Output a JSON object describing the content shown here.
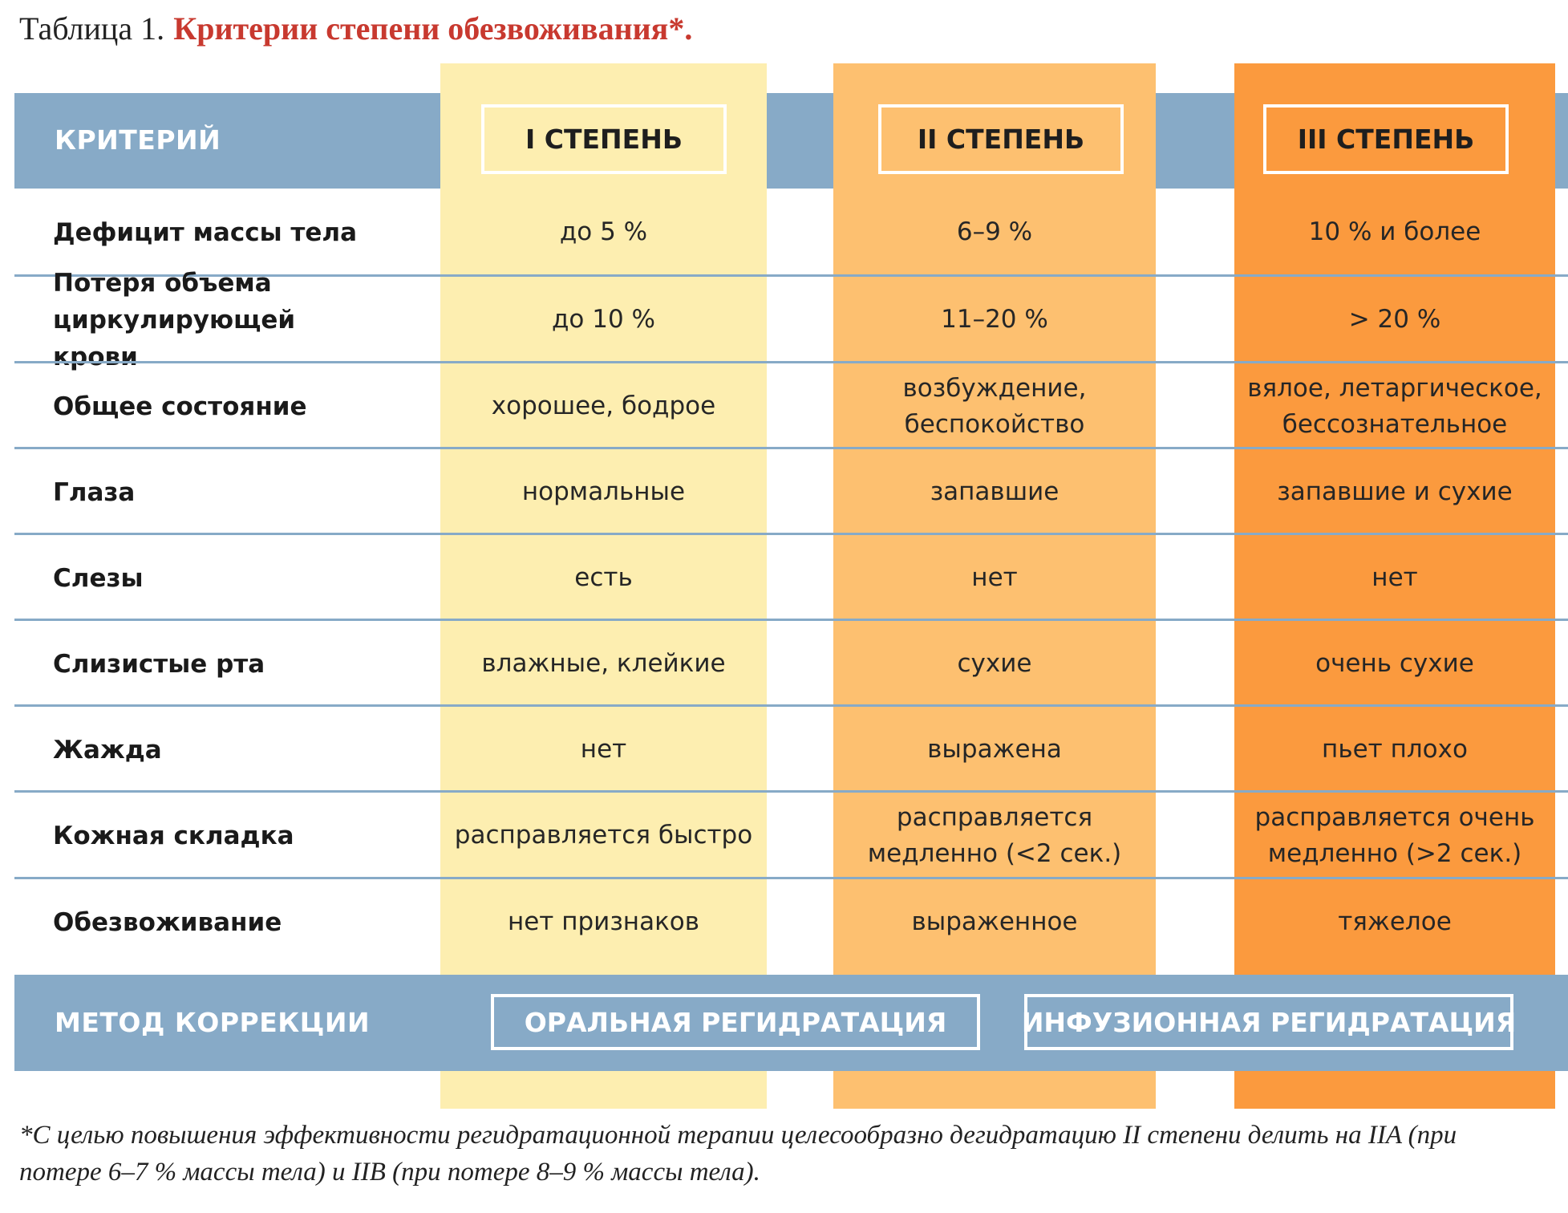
{
  "title": {
    "prefix": "Таблица 1.",
    "main": "Критерии степени обезвоживания*."
  },
  "header": {
    "criterion": "КРИТЕРИЙ",
    "degrees": [
      "I СТЕПЕНЬ",
      "II СТЕПЕНЬ",
      "III СТЕПЕНЬ"
    ]
  },
  "rows": [
    {
      "criterion": "Дефицит массы тела",
      "values": [
        "до 5 %",
        "6–9 %",
        "10 % и более"
      ]
    },
    {
      "criterion": "Потеря объема циркулирующей крови",
      "values": [
        "до 10 %",
        "11–20 %",
        "> 20 %"
      ]
    },
    {
      "criterion": "Общее состояние",
      "values": [
        "хорошее, бодрое",
        "возбуждение, беспокойство",
        "вялое, летаргическое, бессознательное"
      ]
    },
    {
      "criterion": "Глаза",
      "values": [
        "нормальные",
        "запавшие",
        "запавшие и сухие"
      ]
    },
    {
      "criterion": "Слезы",
      "values": [
        "есть",
        "нет",
        "нет"
      ]
    },
    {
      "criterion": "Слизистые рта",
      "values": [
        "влажные, клейкие",
        "сухие",
        "очень сухие"
      ]
    },
    {
      "criterion": "Жажда",
      "values": [
        "нет",
        "выражена",
        "пьет плохо"
      ]
    },
    {
      "criterion": "Кожная складка",
      "values": [
        "расправляется быстро",
        "расправляется медленно (<2 сек.)",
        "расправляется очень медленно (>2 сек.)"
      ]
    },
    {
      "criterion": "Обезвоживание",
      "values": [
        "нет признаков",
        "выраженное",
        "тяжелое"
      ]
    }
  ],
  "method": {
    "label": "МЕТОД КОРРЕКЦИИ",
    "oral": "ОРАЛЬНАЯ РЕГИДРАТАЦИЯ",
    "infusion": "ИНФУЗИОННАЯ РЕГИДРАТАЦИЯ"
  },
  "footnote": "*С целью повышения эффективности регидратационной терапии целесообразно дегидратацию II степени делить на IIA (при потере 6–7 % массы тела) и IIB (при потере 8–9 % массы тела).",
  "colors": {
    "title_red": "#c8392f",
    "band_blue": "#87aac7",
    "degree1": "#fdeeb0",
    "degree2": "#fdc070",
    "degree3": "#fb9a3e"
  }
}
